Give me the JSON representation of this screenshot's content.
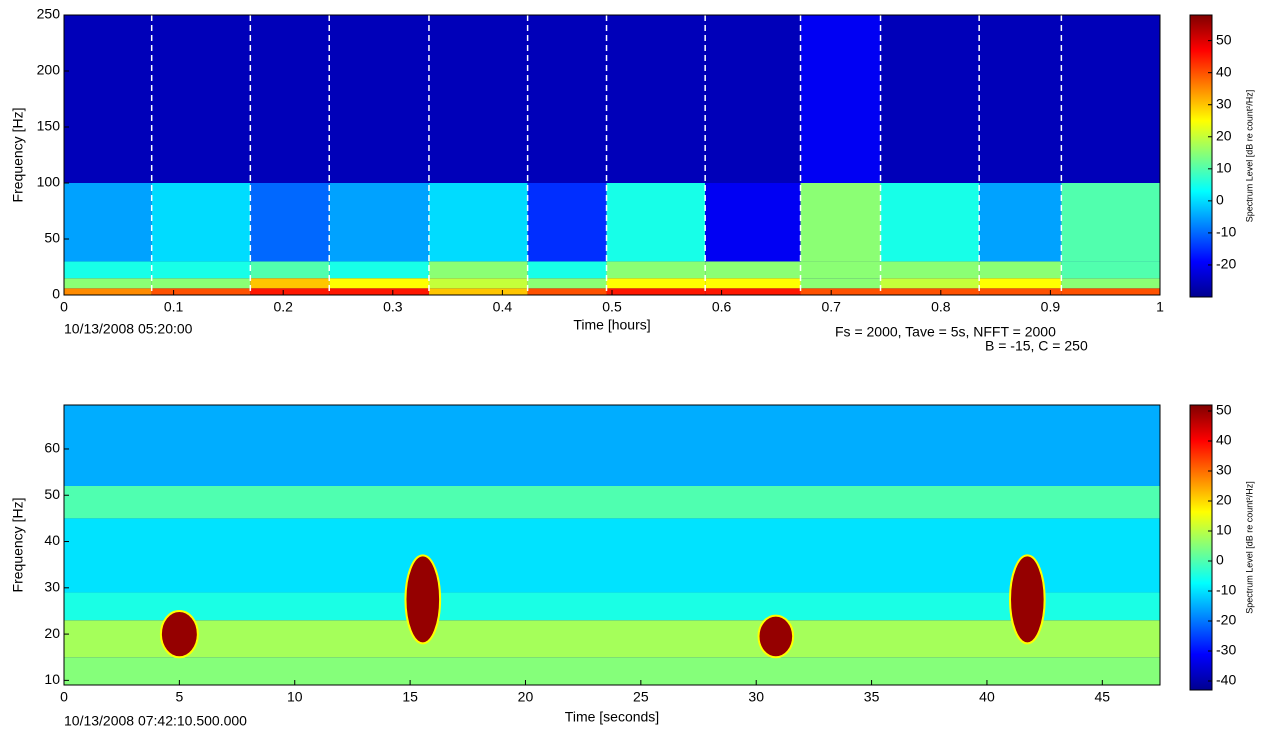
{
  "chart_data": [
    {
      "type": "heatmap",
      "colormap": "jet",
      "xlabel": "Time [hours]",
      "ylabel": "Frequency [Hz]",
      "xlim": [
        0,
        1
      ],
      "xticks": [
        0,
        0.1,
        0.2,
        0.3,
        0.4,
        0.5,
        0.6,
        0.7,
        0.8,
        0.9,
        1
      ],
      "ylim": [
        0,
        250
      ],
      "yticks": [
        0,
        50,
        100,
        150,
        200,
        250
      ],
      "x_edges": [
        0,
        0.08,
        0.17,
        0.242,
        0.333,
        0.423,
        0.495,
        0.585,
        0.672,
        0.745,
        0.835,
        0.91,
        1
      ],
      "y_edges": [
        0,
        6,
        15,
        30,
        100,
        250
      ],
      "z": [
        [
          35,
          40,
          45,
          45,
          30,
          40,
          45,
          45,
          40,
          40,
          40,
          40
        ],
        [
          15,
          15,
          30,
          25,
          20,
          15,
          25,
          25,
          15,
          20,
          25,
          15
        ],
        [
          5,
          5,
          10,
          5,
          15,
          5,
          15,
          15,
          15,
          15,
          15,
          10
        ],
        [
          -5,
          0,
          -10,
          -5,
          0,
          -15,
          5,
          -20,
          15,
          5,
          -5,
          10
        ],
        [
          -25,
          -25,
          -25,
          -25,
          -25,
          -25,
          -25,
          -25,
          -20,
          -25,
          -25,
          -25
        ]
      ],
      "dashed_edges": true,
      "colorbar": {
        "label": "Spectrum Level [dB re count²/Hz]",
        "lim": [
          -30,
          58
        ],
        "ticks": [
          -20,
          -10,
          0,
          10,
          20,
          30,
          40,
          50
        ]
      },
      "annotations": [
        "10/13/2008 05:20:00",
        "Fs = 2000, Tave = 5s, NFFT = 2000",
        "B = -15, C = 250"
      ]
    },
    {
      "type": "heatmap",
      "colormap": "jet",
      "xlabel": "Time [seconds]",
      "ylabel": "Frequency [Hz]",
      "xlim": [
        0,
        47.5
      ],
      "xticks": [
        0,
        5,
        10,
        15,
        20,
        25,
        30,
        35,
        40,
        45
      ],
      "ylim": [
        9,
        69.5
      ],
      "yticks": [
        10,
        20,
        30,
        40,
        50,
        60
      ],
      "x_edges": [
        0,
        47.5
      ],
      "y_edges": [
        9,
        15,
        23,
        29,
        45,
        52,
        69.5
      ],
      "z": [
        [
          5
        ],
        [
          8
        ],
        [
          -5
        ],
        [
          -10
        ],
        [
          0
        ],
        [
          -15
        ]
      ],
      "events": [
        {
          "x": [
            4.2,
            5.8
          ],
          "y": [
            15,
            25
          ],
          "value": 50
        },
        {
          "x": [
            14.8,
            16.3
          ],
          "y": [
            18,
            37
          ],
          "value": 50
        },
        {
          "x": [
            30.1,
            31.6
          ],
          "y": [
            15,
            24
          ],
          "value": 50
        },
        {
          "x": [
            41,
            42.5
          ],
          "y": [
            18,
            37
          ],
          "value": 50
        }
      ],
      "colorbar": {
        "label": "Spectrum Level [dB re count²/Hz]",
        "lim": [
          -43,
          52
        ],
        "ticks": [
          -40,
          -30,
          -20,
          -10,
          0,
          10,
          20,
          30,
          40,
          50
        ]
      },
      "annotations": [
        "10/13/2008 07:42:10.500.000"
      ]
    }
  ]
}
